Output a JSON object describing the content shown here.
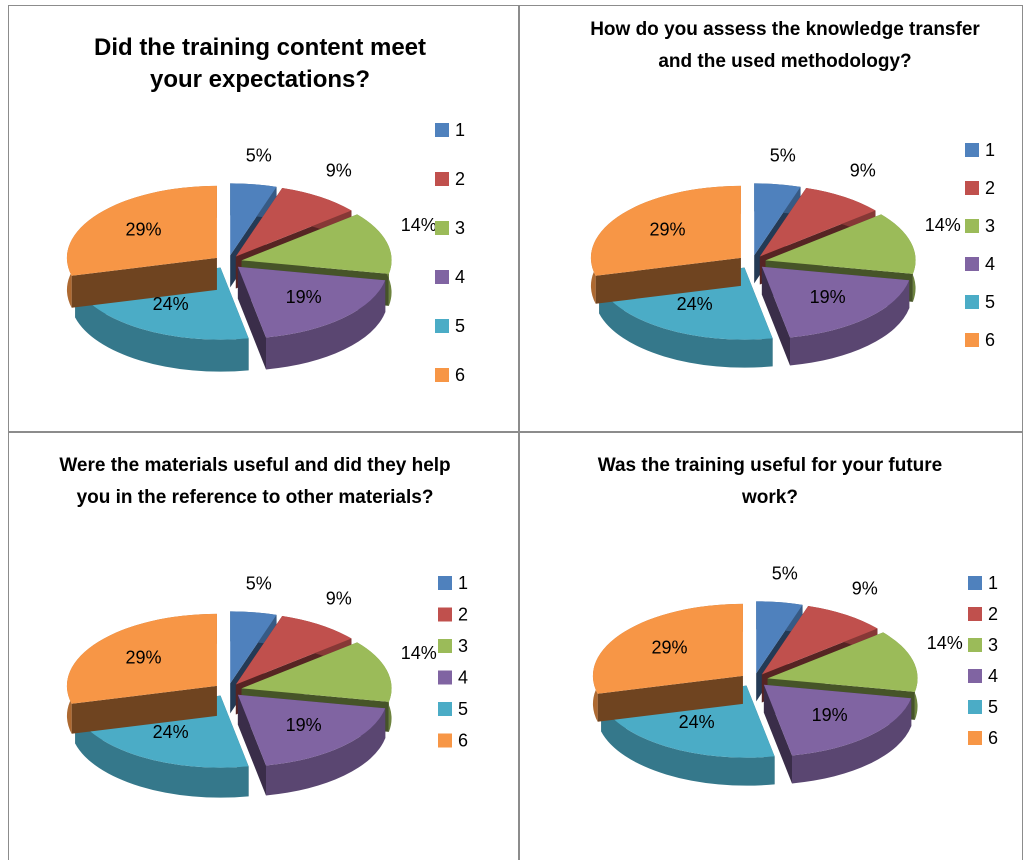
{
  "chart_data": [
    {
      "type": "pie",
      "title": "Did the training content meet your expectations?",
      "categories": [
        "1",
        "2",
        "3",
        "4",
        "5",
        "6"
      ],
      "values": [
        5,
        9,
        14,
        19,
        24,
        29
      ],
      "value_labels": [
        "5%",
        "9%",
        "14%",
        "19%",
        "24%",
        "29%"
      ],
      "colors": [
        "#4f81bd",
        "#c0504d",
        "#9bbb59",
        "#8064a2",
        "#4bacc6",
        "#f79646"
      ],
      "legend": "right"
    },
    {
      "type": "pie",
      "title": "How do you assess the knowledge transfer and the used methodology?",
      "categories": [
        "1",
        "2",
        "3",
        "4",
        "5",
        "6"
      ],
      "values": [
        5,
        9,
        14,
        19,
        24,
        29
      ],
      "value_labels": [
        "5%",
        "9%",
        "14%",
        "19%",
        "24%",
        "29%"
      ],
      "colors": [
        "#4f81bd",
        "#c0504d",
        "#9bbb59",
        "#8064a2",
        "#4bacc6",
        "#f79646"
      ],
      "legend": "right"
    },
    {
      "type": "pie",
      "title": "Were the materials useful and did they help you in the reference to other materials?",
      "categories": [
        "1",
        "2",
        "3",
        "4",
        "5",
        "6"
      ],
      "values": [
        5,
        9,
        14,
        19,
        24,
        29
      ],
      "value_labels": [
        "5%",
        "9%",
        "14%",
        "19%",
        "24%",
        "29%"
      ],
      "colors": [
        "#4f81bd",
        "#c0504d",
        "#9bbb59",
        "#8064a2",
        "#4bacc6",
        "#f79646"
      ],
      "legend": "right"
    },
    {
      "type": "pie",
      "title": "Was the training useful for your future work?",
      "categories": [
        "1",
        "2",
        "3",
        "4",
        "5",
        "6"
      ],
      "values": [
        5,
        9,
        14,
        19,
        24,
        29
      ],
      "value_labels": [
        "5%",
        "9%",
        "14%",
        "19%",
        "24%",
        "29%"
      ],
      "colors": [
        "#4f81bd",
        "#c0504d",
        "#9bbb59",
        "#8064a2",
        "#4bacc6",
        "#f79646"
      ],
      "legend": "right"
    }
  ]
}
